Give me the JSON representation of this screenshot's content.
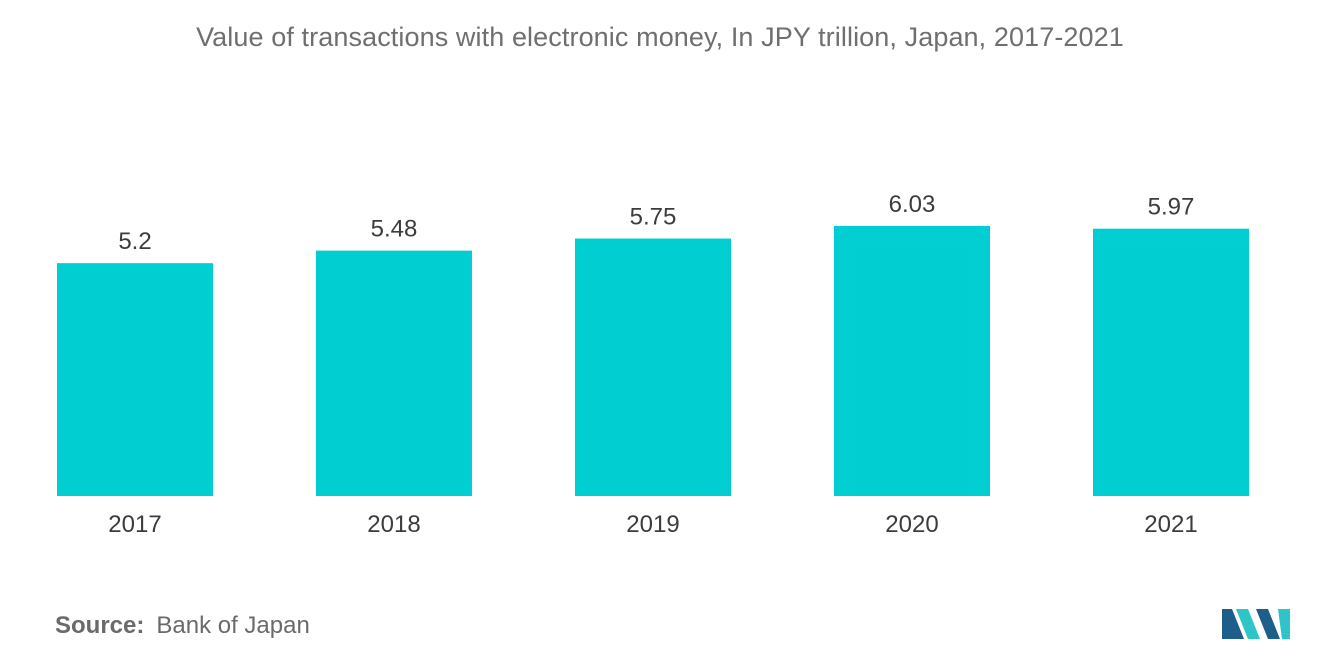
{
  "title": "Value of transactions with electronic money, In JPY trillion, Japan, 2017-2021",
  "source": {
    "key": "Source:",
    "value": "Bank of Japan"
  },
  "colors": {
    "bar": "#00ced1",
    "text": "#3c3c3c",
    "title": "#6f6f6f",
    "logo_dark": "#1d5f8a",
    "logo_light": "#2ec4c8"
  },
  "logo": {
    "icon": "mordor-intelligence-logo-icon"
  },
  "chart_data": {
    "type": "bar",
    "title": "Value of transactions with electronic money, In JPY trillion, Japan, 2017-2021",
    "categories": [
      "2017",
      "2018",
      "2019",
      "2020",
      "2021"
    ],
    "values": [
      5.2,
      5.48,
      5.75,
      6.03,
      5.97
    ],
    "value_labels": [
      "5.2",
      "5.48",
      "5.75",
      "6.03",
      "5.97"
    ],
    "xlabel": "",
    "ylabel": "",
    "ylim": [
      0,
      6.03
    ],
    "grid": false,
    "legend": "none",
    "y_axis_shown": false
  }
}
